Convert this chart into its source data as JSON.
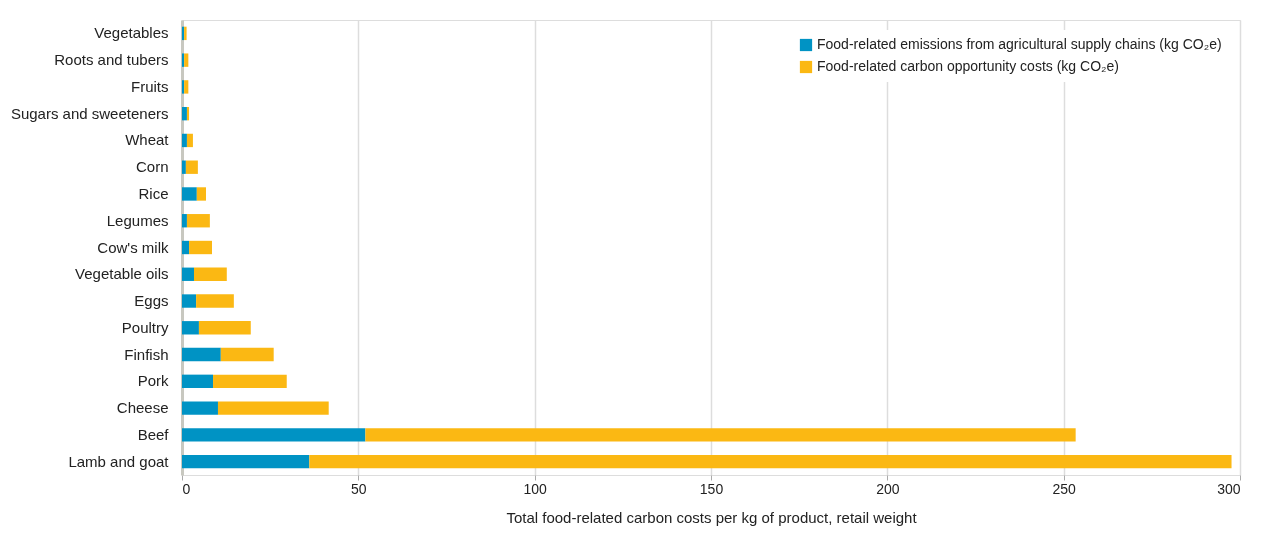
{
  "chart_data": {
    "type": "bar",
    "orientation": "horizontal",
    "stacked": true,
    "xlabel": "Total food-related carbon costs per kg of product, retail weight",
    "categories": [
      "Vegetables",
      "Roots and tubers",
      "Fruits",
      "Sugars and sweeteners",
      "Wheat",
      "Corn",
      "Rice",
      "Legumes",
      "Cow's milk",
      "Vegetable oils",
      "Eggs",
      "Poultry",
      "Finfish",
      "Pork",
      "Cheese",
      "Beef",
      "Lamb and goat"
    ],
    "series": [
      {
        "name": "Food-related emissions from agricultural supply chains (kg CO₂e)",
        "color": "#0093c4",
        "values": [
          0.6,
          0.6,
          0.6,
          1.4,
          1.4,
          1.1,
          4.2,
          1.4,
          2.0,
          3.4,
          4.0,
          4.8,
          11.0,
          8.8,
          10.2,
          52.0,
          36.1
        ]
      },
      {
        "name": "Food-related carbon opportunity costs (kg CO₂e)",
        "color": "#fbb813",
        "values": [
          0.7,
          1.2,
          1.2,
          0.6,
          1.7,
          3.4,
          2.6,
          6.5,
          6.5,
          9.3,
          10.7,
          14.7,
          15.0,
          20.9,
          31.4,
          201.4,
          261.5
        ]
      }
    ],
    "xlim": [
      0,
      300
    ],
    "xticks": [
      0,
      50,
      100,
      150,
      200,
      250,
      300
    ],
    "grid": "x",
    "legend": "top right"
  }
}
